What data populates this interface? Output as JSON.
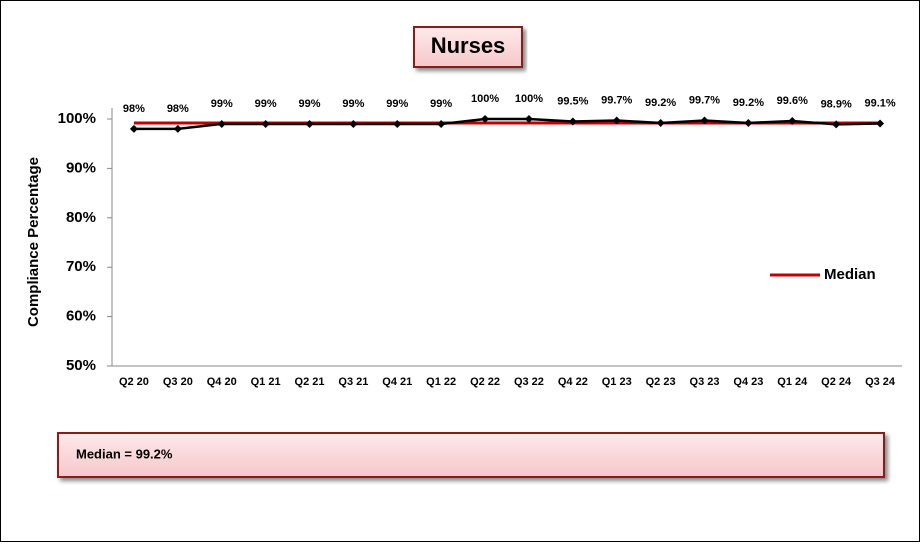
{
  "chart_data": {
    "type": "line",
    "title": "Nurses",
    "y_label": "Compliance Percentage",
    "categories": [
      "Q2 20",
      "Q3 20",
      "Q4 20",
      "Q1 21",
      "Q2 21",
      "Q3 21",
      "Q4 21",
      "Q1 22",
      "Q2 22",
      "Q3 22",
      "Q4 22",
      "Q1 23",
      "Q2 23",
      "Q3 23",
      "Q4 23",
      "Q1 24",
      "Q2 24",
      "Q3 24"
    ],
    "values": [
      98,
      98,
      99,
      99,
      99,
      99,
      99,
      99,
      100,
      100,
      99.5,
      99.7,
      99.2,
      99.7,
      99.2,
      99.6,
      98.9,
      99.1
    ],
    "value_labels": [
      "98%",
      "98%",
      "99%",
      "99%",
      "99%",
      "99%",
      "99%",
      "99%",
      "100%",
      "100%",
      "99.5%",
      "99.7%",
      "99.2%",
      "99.7%",
      "99.2%",
      "99.6%",
      "98.9%",
      "99.1%"
    ],
    "color": "#000000",
    "series": [
      {
        "name": "Median",
        "color": "#c00000",
        "values": [
          99.2,
          99.2,
          99.2,
          99.2,
          99.2,
          99.2,
          99.2,
          99.2,
          99.2,
          99.2,
          99.2,
          99.2,
          99.2,
          99.2,
          99.2,
          99.2,
          99.2,
          99.2
        ]
      }
    ],
    "ylim": [
      50,
      100
    ],
    "yticks": [
      {
        "value": 50,
        "label": "50%"
      },
      {
        "value": 60,
        "label": "60%"
      },
      {
        "value": 70,
        "label": "70%"
      },
      {
        "value": 80,
        "label": "80%"
      },
      {
        "value": 90,
        "label": "90%"
      },
      {
        "value": 100,
        "label": "100%"
      }
    ],
    "legend": "right",
    "annotation": "Median = 99.2%"
  }
}
